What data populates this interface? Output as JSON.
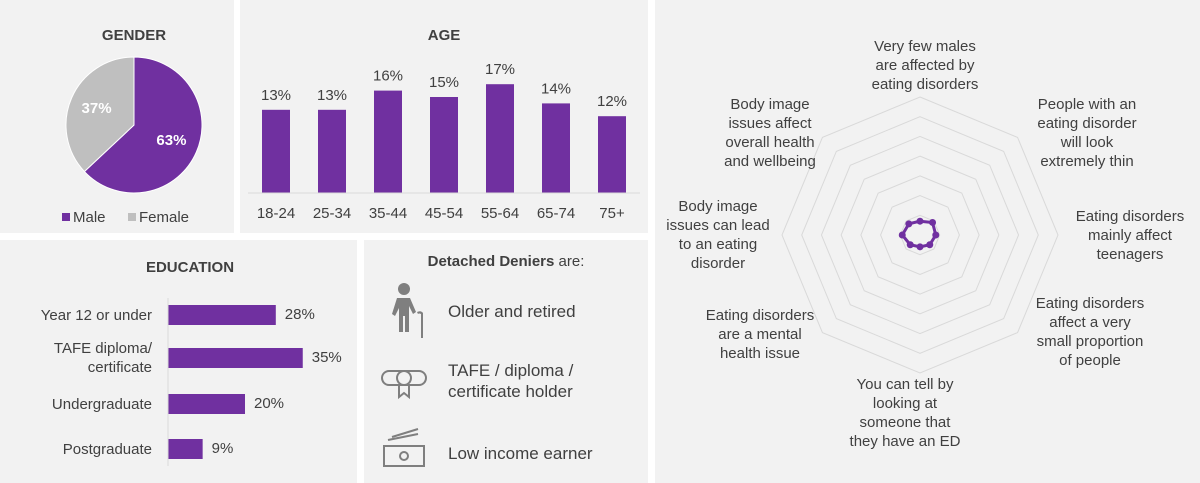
{
  "chart_data": [
    {
      "type": "pie",
      "title": "GENDER",
      "categories": [
        "Male",
        "Female"
      ],
      "values": [
        63,
        37
      ],
      "value_labels": [
        "63%",
        "37%"
      ],
      "colors": [
        "#7030a0",
        "#bfbfbf"
      ],
      "legend": "bottom"
    },
    {
      "type": "bar",
      "title": "AGE",
      "categories": [
        "18-24",
        "25-34",
        "35-44",
        "45-54",
        "55-64",
        "65-74",
        "75+"
      ],
      "values": [
        13,
        13,
        16,
        15,
        17,
        14,
        12
      ],
      "value_labels": [
        "13%",
        "13%",
        "16%",
        "15%",
        "17%",
        "14%",
        "12%"
      ],
      "color": "#7030a0",
      "ylim": [
        0,
        20
      ]
    },
    {
      "type": "barh",
      "title": "EDUCATION",
      "categories": [
        "Year 12 or under",
        "TAFE diploma/\ncertificate",
        "Undergraduate",
        "Postgraduate"
      ],
      "values": [
        28,
        35,
        20,
        9
      ],
      "value_labels": [
        "28%",
        "35%",
        "20%",
        "9%"
      ],
      "color": "#7030a0",
      "xlim": [
        0,
        40
      ]
    },
    {
      "type": "radar",
      "categories": [
        "Very few males\nare affected by\neating disorders",
        "People with an\neating disorder\nwill look\nextremely thin",
        "Eating disorders\nmainly affect\nteenagers",
        "Eating disorders\naffect a very\nsmall proportion\nof people",
        "You can tell by\nlooking at\nsomeone that\nthey have an ED",
        "Eating disorders\nare a mental\nhealth issue",
        "Body image\nissues can lead\nto an eating\ndisorder",
        "Body image\nissues affect\noverall health\nand wellbeing"
      ],
      "values": [
        0.7,
        0.9,
        0.8,
        0.7,
        0.6,
        0.7,
        0.9,
        0.8
      ],
      "color": "#7030a0",
      "rlim": [
        0,
        7
      ],
      "rticks": [
        1,
        2,
        3,
        4,
        5,
        6,
        7
      ]
    }
  ],
  "profile": {
    "title_bold": "Detached Deniers",
    "title_rest": "are:",
    "items": [
      "Older and retired",
      "TAFE / diploma /\ncertificate holder",
      "Low income earner"
    ]
  }
}
